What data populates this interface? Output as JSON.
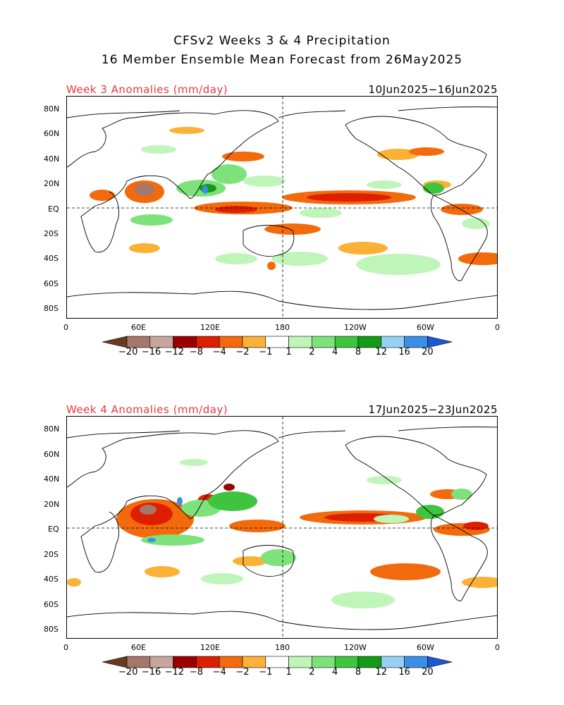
{
  "header": {
    "title_line1": "CFSv2 Weeks 3 & 4 Precipitation",
    "title_line2": "16 Member Ensemble Mean Forecast from 26May2025"
  },
  "panels": [
    {
      "label": "Week 3 Anomalies (mm/day)",
      "dates": "10Jun2025−16Jun2025"
    },
    {
      "label": "Week 4 Anomalies (mm/day)",
      "dates": "17Jun2025−23Jun2025"
    }
  ],
  "axes": {
    "lat_ticks": [
      "80N",
      "60N",
      "40N",
      "20N",
      "EQ",
      "20S",
      "40S",
      "60S",
      "80S"
    ],
    "lon_ticks": [
      "0",
      "60E",
      "120E",
      "180",
      "120W",
      "60W",
      "0"
    ]
  },
  "colorbar": {
    "labels": [
      "−20",
      "−16",
      "−12",
      "−8",
      "−4",
      "−2",
      "−1",
      "1",
      "2",
      "4",
      "8",
      "12",
      "16",
      "20"
    ],
    "colors": [
      "#6b3a1e",
      "#a5766a",
      "#c9a59b",
      "#990000",
      "#dd1f00",
      "#f26a0b",
      "#fbb036",
      "#ffffff",
      "#bff5b8",
      "#7de27a",
      "#3fc43f",
      "#139a17",
      "#96d0f5",
      "#3c8fe8",
      "#1e56d6"
    ]
  }
}
